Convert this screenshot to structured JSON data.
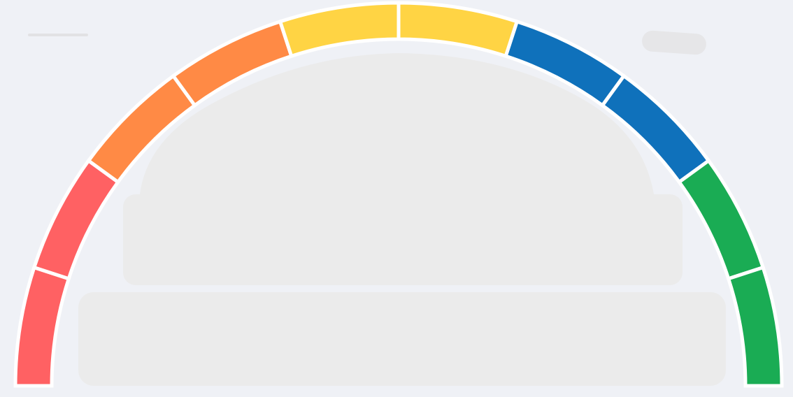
{
  "gauge": {
    "segments": [
      {
        "color": "#ff6163"
      },
      {
        "color": "#ff6163"
      },
      {
        "color": "#ff8a45"
      },
      {
        "color": "#ff8a45"
      },
      {
        "color": "#ffd444"
      },
      {
        "color": "#ffd444"
      },
      {
        "color": "#0f71bb"
      },
      {
        "color": "#0f71bb"
      },
      {
        "color": "#1aac54"
      },
      {
        "color": "#1aac54"
      }
    ],
    "separator_color": "#ffffff",
    "inner_panel_color": "#ebebeb"
  }
}
